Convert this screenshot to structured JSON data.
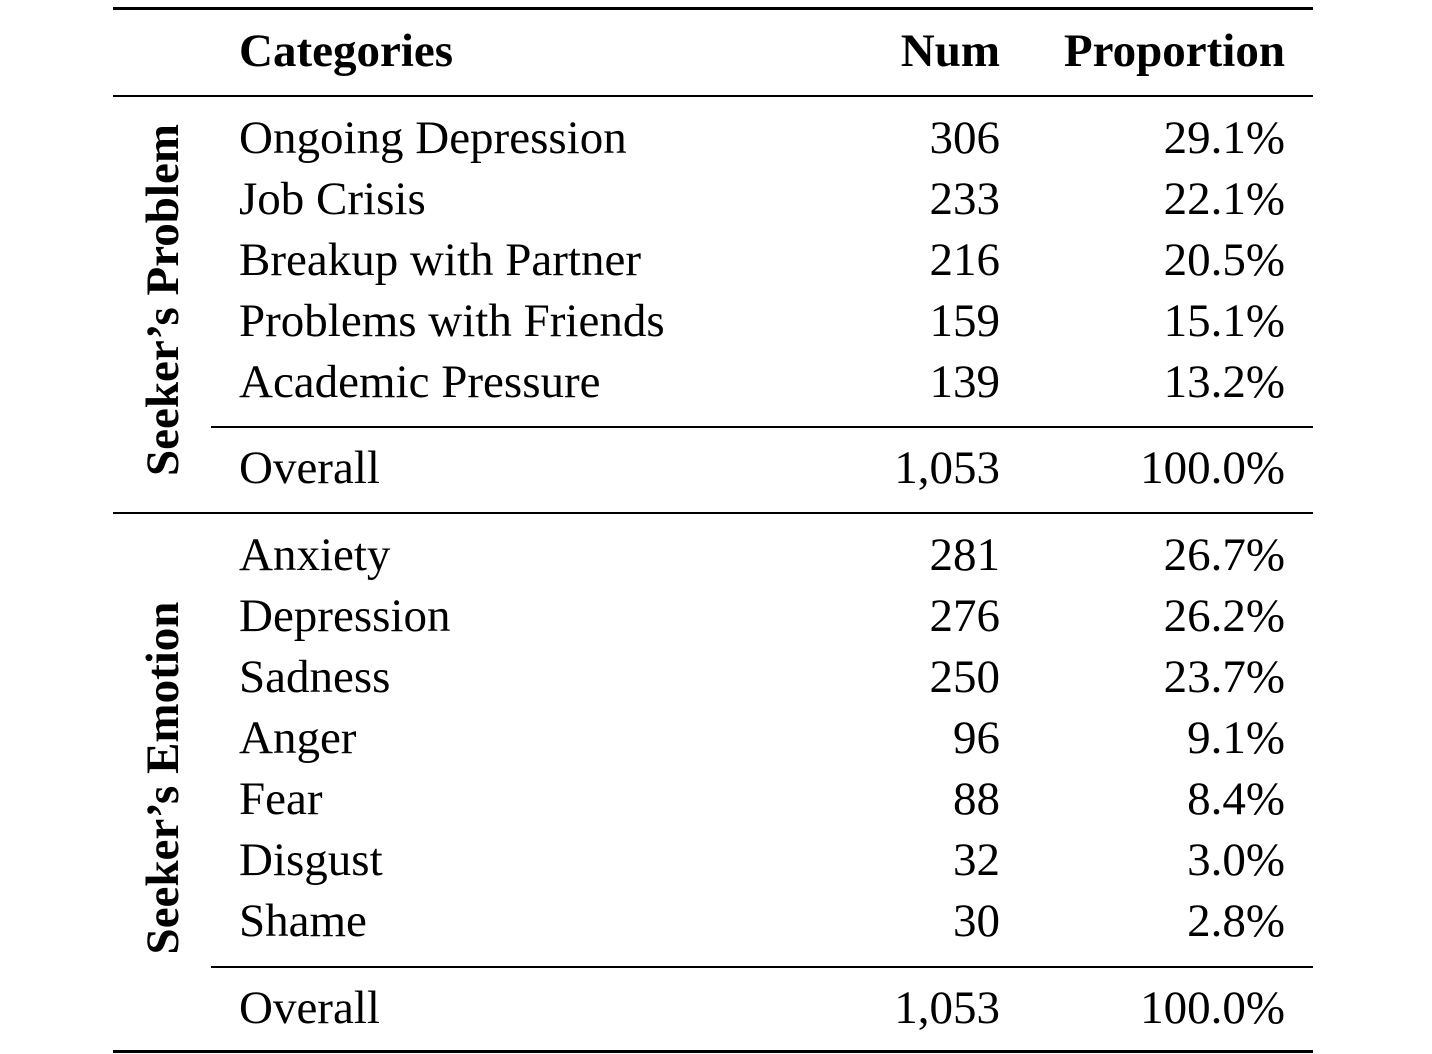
{
  "header": {
    "categories": "Categories",
    "num": "Num",
    "proportion": "Proportion"
  },
  "groups": [
    {
      "label": "Seeker’s Problem",
      "rows": [
        {
          "category": "Ongoing Depression",
          "num": "306",
          "proportion": "29.1%"
        },
        {
          "category": "Job Crisis",
          "num": "233",
          "proportion": "22.1%"
        },
        {
          "category": "Breakup with Partner",
          "num": "216",
          "proportion": "20.5%"
        },
        {
          "category": "Problems with Friends",
          "num": "159",
          "proportion": "15.1%"
        },
        {
          "category": "Academic Pressure",
          "num": "139",
          "proportion": "13.2%"
        }
      ],
      "overall": {
        "category": "Overall",
        "num": "1,053",
        "proportion": "100.0%"
      }
    },
    {
      "label": "Seeker’s Emotion",
      "rows": [
        {
          "category": "Anxiety",
          "num": "281",
          "proportion": "26.7%"
        },
        {
          "category": "Depression",
          "num": "276",
          "proportion": "26.2%"
        },
        {
          "category": "Sadness",
          "num": "250",
          "proportion": "23.7%"
        },
        {
          "category": "Anger",
          "num": "96",
          "proportion": "9.1%"
        },
        {
          "category": "Fear",
          "num": "88",
          "proportion": "8.4%"
        },
        {
          "category": "Disgust",
          "num": "32",
          "proportion": "3.0%"
        },
        {
          "category": "Shame",
          "num": "30",
          "proportion": "2.8%"
        }
      ],
      "overall": {
        "category": "Overall",
        "num": "1,053",
        "proportion": "100.0%"
      }
    }
  ]
}
